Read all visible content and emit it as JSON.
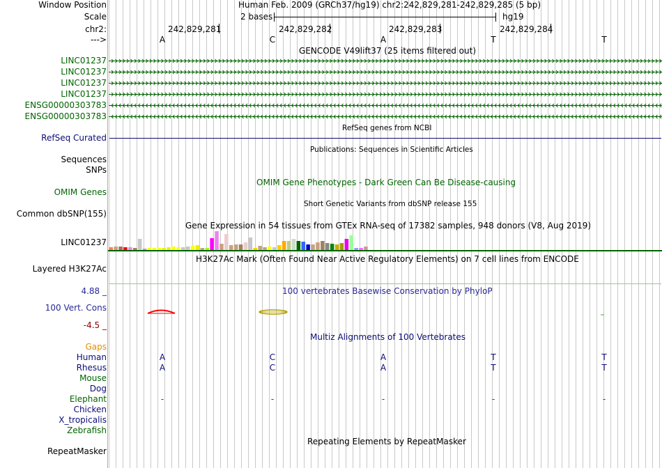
{
  "header": {
    "window_position_label": "Window Position",
    "assembly_and_position": "Human Feb. 2009 (GRCh37/hg19)   chr2:242,829,281-242,829,285 (5 bp)",
    "scale_label": "Scale",
    "scale_value": "2 bases",
    "scale_db": "hg19",
    "chrom_label": "chr2:",
    "strand_label": "--->",
    "coords": [
      "242,829,281",
      "242,829,282",
      "242,829,283",
      "242,829,284"
    ],
    "bases": [
      "A",
      "C",
      "A",
      "T",
      "T"
    ]
  },
  "gencode": {
    "title": "GENCODE V49lift37 (25 items filtered out)",
    "items": [
      {
        "name": "LINC01237",
        "strand": "+"
      },
      {
        "name": "LINC01237",
        "strand": "+"
      },
      {
        "name": "LINC01237",
        "strand": "+"
      },
      {
        "name": "LINC01237",
        "strand": "+"
      },
      {
        "name": "ENSG00000303783",
        "strand": "-"
      },
      {
        "name": "ENSG00000303783",
        "strand": "-"
      }
    ],
    "color": "#006400"
  },
  "refseq": {
    "title": "RefSeq genes from NCBI",
    "label": "RefSeq Curated",
    "color": "#0c0c78"
  },
  "publications": {
    "title": "Publications: Sequences in Scientific Articles",
    "labels": [
      "Sequences",
      "SNPs"
    ]
  },
  "omim": {
    "title": "OMIM Gene Phenotypes - Dark Green Can Be Disease-causing",
    "label": "OMIM Genes",
    "color": "#006400"
  },
  "dbsnp": {
    "title": "Short Genetic Variants from dbSNP release 155",
    "label": "Common dbSNP(155)"
  },
  "gtex": {
    "title": "Gene Expression in 54 tissues from GTEx RNA-seq of 17382 samples, 948 donors (V8, Aug 2019)",
    "label": "LINC01237",
    "colors": [
      "#ff7f50",
      "#c8a080",
      "#c06060",
      "#ff0000",
      "#ee82ee",
      "#b08060",
      "#c8c8c8",
      "#c8a080",
      "#ffff00",
      "#ffff00",
      "#ffff00",
      "#eeee00",
      "#eeee00",
      "#ffff00",
      "#ffff00",
      "#c8c8c8",
      "#c8c8c8",
      "#ffff00",
      "#eeee00",
      "#c8a080",
      "#99ff00",
      "#ff00ff",
      "#ee82ee",
      "#c8a080",
      "#eecccc",
      "#c8a080",
      "#c8a080",
      "#a08060",
      "#eecccc",
      "#c8c8c8",
      "#ffcc00",
      "#c8a080",
      "#c8a080",
      "#ffff00",
      "#c8c8c8",
      "#ffcc00",
      "#ffaa00",
      "#bbcc88",
      "#ccddcc",
      "#006600",
      "#3366ff",
      "#0000cc",
      "#c8a080",
      "#c8a080",
      "#a08060",
      "#888888",
      "#008800",
      "#ccaa00",
      "#a0a000",
      "#ee00ee",
      "#99ff99",
      "#9999ff",
      "#ff66ff",
      "#cc9999"
    ],
    "values": [
      4,
      5,
      5,
      4,
      4,
      3,
      16,
      2,
      3,
      3,
      3,
      3,
      4,
      5,
      4,
      4,
      5,
      6,
      7,
      3,
      3,
      17,
      27,
      9,
      23,
      7,
      8,
      8,
      11,
      18,
      3,
      6,
      4,
      5,
      4,
      7,
      13,
      13,
      16,
      13,
      12,
      8,
      8,
      11,
      13,
      10,
      9,
      8,
      10,
      16,
      21,
      3,
      3,
      5
    ]
  },
  "h3k27ac": {
    "title": "H3K27Ac Mark (Often Found Near Active Regulatory Elements) on 7 cell lines from ENCODE",
    "label": "Layered H3K27Ac"
  },
  "phylop": {
    "title": "100 vertebrates Basewise Conservation by PhyloP",
    "label": "100 Vert. Cons",
    "max_label": "4.88 _",
    "min_label": "-4.5 _",
    "color": "#282896"
  },
  "multiz": {
    "title": "Multiz Alignments of 100 Vertebrates",
    "gaps_label": "Gaps",
    "species": [
      {
        "name": "Human",
        "bases": [
          "A",
          "C",
          "A",
          "T",
          "T"
        ],
        "color": "#0c0c78"
      },
      {
        "name": "Rhesus",
        "bases": [
          "A",
          "C",
          "A",
          "T",
          "T"
        ],
        "color": "#0c0c78"
      },
      {
        "name": "Mouse",
        "bases": [],
        "color": "#006400"
      },
      {
        "name": "Dog",
        "bases": [],
        "color": "#0c0c78"
      },
      {
        "name": "Elephant",
        "bases": [
          "-",
          "-",
          "-",
          "-",
          "-"
        ],
        "color": "#006400"
      },
      {
        "name": "Chicken",
        "bases": [],
        "color": "#0c0c78"
      },
      {
        "name": "X_tropicalis",
        "bases": [],
        "color": "#0c0c78"
      },
      {
        "name": "Zebrafish",
        "bases": [],
        "color": "#006400"
      }
    ]
  },
  "repeatmasker": {
    "title": "Repeating Elements by RepeatMasker",
    "label": "RepeatMasker"
  }
}
